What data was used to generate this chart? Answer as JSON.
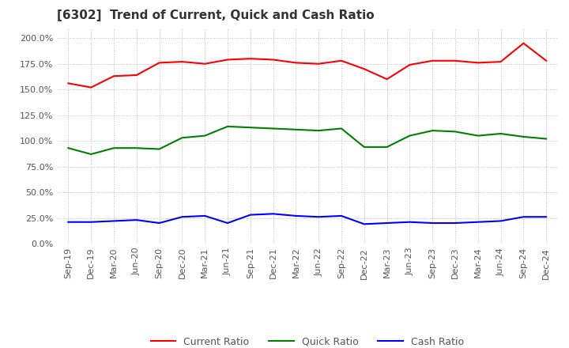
{
  "title": "[6302]  Trend of Current, Quick and Cash Ratio",
  "x_labels": [
    "Sep-19",
    "Dec-19",
    "Mar-20",
    "Jun-20",
    "Sep-20",
    "Dec-20",
    "Mar-21",
    "Jun-21",
    "Sep-21",
    "Dec-21",
    "Mar-22",
    "Jun-22",
    "Sep-22",
    "Dec-22",
    "Mar-23",
    "Jun-23",
    "Sep-23",
    "Dec-23",
    "Mar-24",
    "Jun-24",
    "Sep-24",
    "Dec-24"
  ],
  "current_ratio": [
    1.56,
    1.52,
    1.63,
    1.64,
    1.76,
    1.77,
    1.75,
    1.79,
    1.8,
    1.79,
    1.76,
    1.75,
    1.78,
    1.7,
    1.6,
    1.74,
    1.78,
    1.78,
    1.76,
    1.77,
    1.95,
    1.78
  ],
  "quick_ratio": [
    0.93,
    0.87,
    0.93,
    0.93,
    0.92,
    1.03,
    1.05,
    1.14,
    1.13,
    1.12,
    1.11,
    1.1,
    1.12,
    0.94,
    0.94,
    1.05,
    1.1,
    1.09,
    1.05,
    1.07,
    1.04,
    1.02
  ],
  "cash_ratio": [
    0.21,
    0.21,
    0.22,
    0.23,
    0.2,
    0.26,
    0.27,
    0.2,
    0.28,
    0.29,
    0.27,
    0.26,
    0.27,
    0.19,
    0.2,
    0.21,
    0.2,
    0.2,
    0.21,
    0.22,
    0.26,
    0.26
  ],
  "current_color": "#FF0000",
  "quick_color": "#008000",
  "cash_color": "#0000FF",
  "bg_color": "#FFFFFF",
  "plot_bg_color": "#FFFFFF",
  "ylim": [
    0.0,
    2.1
  ],
  "yticks": [
    0.0,
    0.25,
    0.5,
    0.75,
    1.0,
    1.25,
    1.5,
    1.75,
    2.0
  ],
  "grid_color": "#BBBBBB",
  "title_fontsize": 11,
  "tick_fontsize": 8,
  "legend_labels": [
    "Current Ratio",
    "Quick Ratio",
    "Cash Ratio"
  ]
}
